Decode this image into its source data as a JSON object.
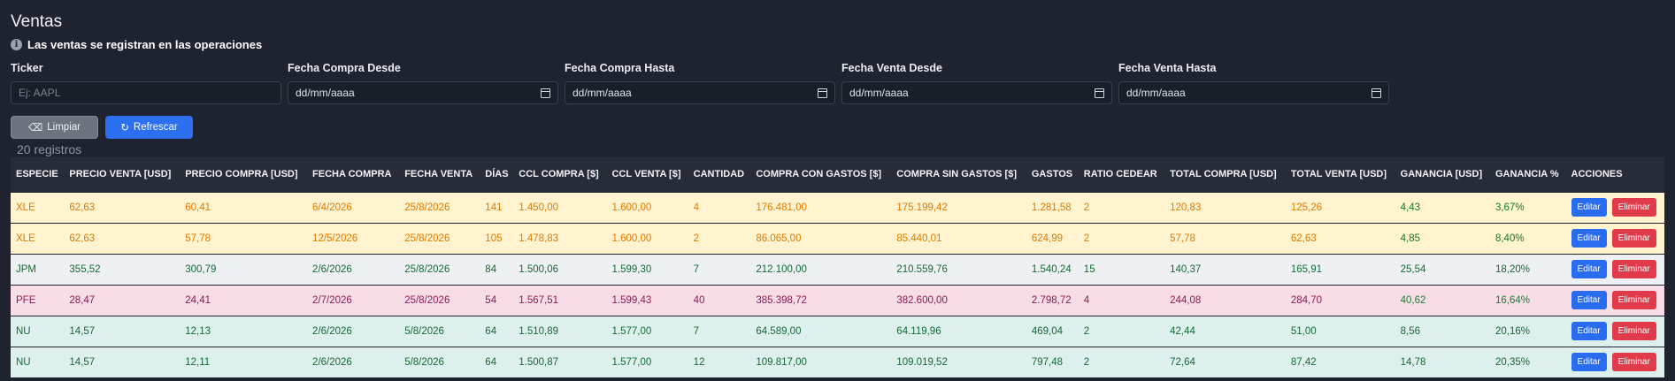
{
  "page": {
    "title": "Ventas",
    "info_text": "Las ventas se registran en las operaciones"
  },
  "filters": [
    {
      "label": "Ticker",
      "placeholder": "Ej: AAPL",
      "type": "text"
    },
    {
      "label": "Fecha Compra Desde",
      "value": "dd/mm/aaaa",
      "type": "date"
    },
    {
      "label": "Fecha Compra Hasta",
      "value": "dd/mm/aaaa",
      "type": "date"
    },
    {
      "label": "Fecha Venta Desde",
      "value": "dd/mm/aaaa",
      "type": "date"
    },
    {
      "label": "Fecha Venta Hasta",
      "value": "dd/mm/aaaa",
      "type": "date"
    }
  ],
  "buttons": {
    "clear": "Limpiar",
    "refresh": "Refrescar"
  },
  "records": "20 registros",
  "table": {
    "headers": [
      "ESPECIE",
      "PRECIO VENTA [USD]",
      "PRECIO COMPRA [USD]",
      "FECHA COMPRA",
      "FECHA VENTA",
      "DÍAS",
      "CCL COMPRA [$]",
      "CCL VENTA [$]",
      "CANTIDAD",
      "COMPRA CON GASTOS [$]",
      "COMPRA SIN GASTOS [$]",
      "GASTOS",
      "RATIO CEDEAR",
      "TOTAL COMPRA [USD]",
      "TOTAL VENTA [USD]",
      "GANANCIA [USD]",
      "GANANCIA %",
      "ACCIONES"
    ],
    "row_actions": {
      "edit": "Editar",
      "delete": "Eliminar"
    },
    "rows": [
      {
        "style": "warn",
        "cells": [
          "XLE",
          "62,63",
          "60,41",
          "6/4/2026",
          "25/8/2026",
          "141",
          "1.450,00",
          "1.600,00",
          "4",
          "176.481,00",
          "175.199,42",
          "1.281,58",
          "2",
          "120,83",
          "125,26",
          "4,43",
          "3,67%"
        ]
      },
      {
        "style": "warn",
        "cells": [
          "XLE",
          "62,63",
          "57,78",
          "12/5/2026",
          "25/8/2026",
          "105",
          "1.478,83",
          "1.600,00",
          "2",
          "86.065,00",
          "85.440,01",
          "624,99",
          "2",
          "57,78",
          "62,63",
          "4,85",
          "8,40%"
        ]
      },
      {
        "style": "light",
        "cells": [
          "JPM",
          "355,52",
          "300,79",
          "2/6/2026",
          "25/8/2026",
          "84",
          "1.500,06",
          "1.599,30",
          "7",
          "212.100,00",
          "210.559,76",
          "1.540,24",
          "15",
          "140,37",
          "165,91",
          "25,54",
          "18,20%"
        ]
      },
      {
        "style": "pink",
        "cells": [
          "PFE",
          "28,47",
          "24,41",
          "2/7/2026",
          "25/8/2026",
          "54",
          "1.567,51",
          "1.599,43",
          "40",
          "385.398,72",
          "382.600,00",
          "2.798,72",
          "4",
          "244,08",
          "284,70",
          "40,62",
          "16,64%"
        ]
      },
      {
        "style": "teal",
        "cells": [
          "NU",
          "14,57",
          "12,13",
          "2/6/2026",
          "5/8/2026",
          "64",
          "1.510,89",
          "1.577,00",
          "7",
          "64.589,00",
          "64.119,96",
          "469,04",
          "2",
          "42,44",
          "51,00",
          "8,56",
          "20,16%"
        ]
      },
      {
        "style": "teal",
        "cells": [
          "NU",
          "14,57",
          "12,11",
          "2/6/2026",
          "5/8/2026",
          "64",
          "1.500,87",
          "1.577,00",
          "12",
          "109.817,00",
          "109.019,52",
          "797,48",
          "2",
          "72,64",
          "87,42",
          "14,78",
          "20,35%"
        ]
      }
    ]
  }
}
